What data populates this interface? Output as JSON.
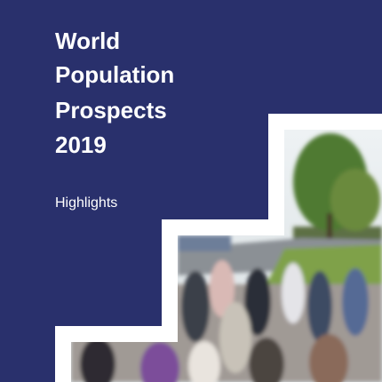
{
  "cover": {
    "title_lines": [
      "World",
      "Population",
      "Prospects",
      "2019"
    ],
    "subtitle": "Highlights"
  }
}
